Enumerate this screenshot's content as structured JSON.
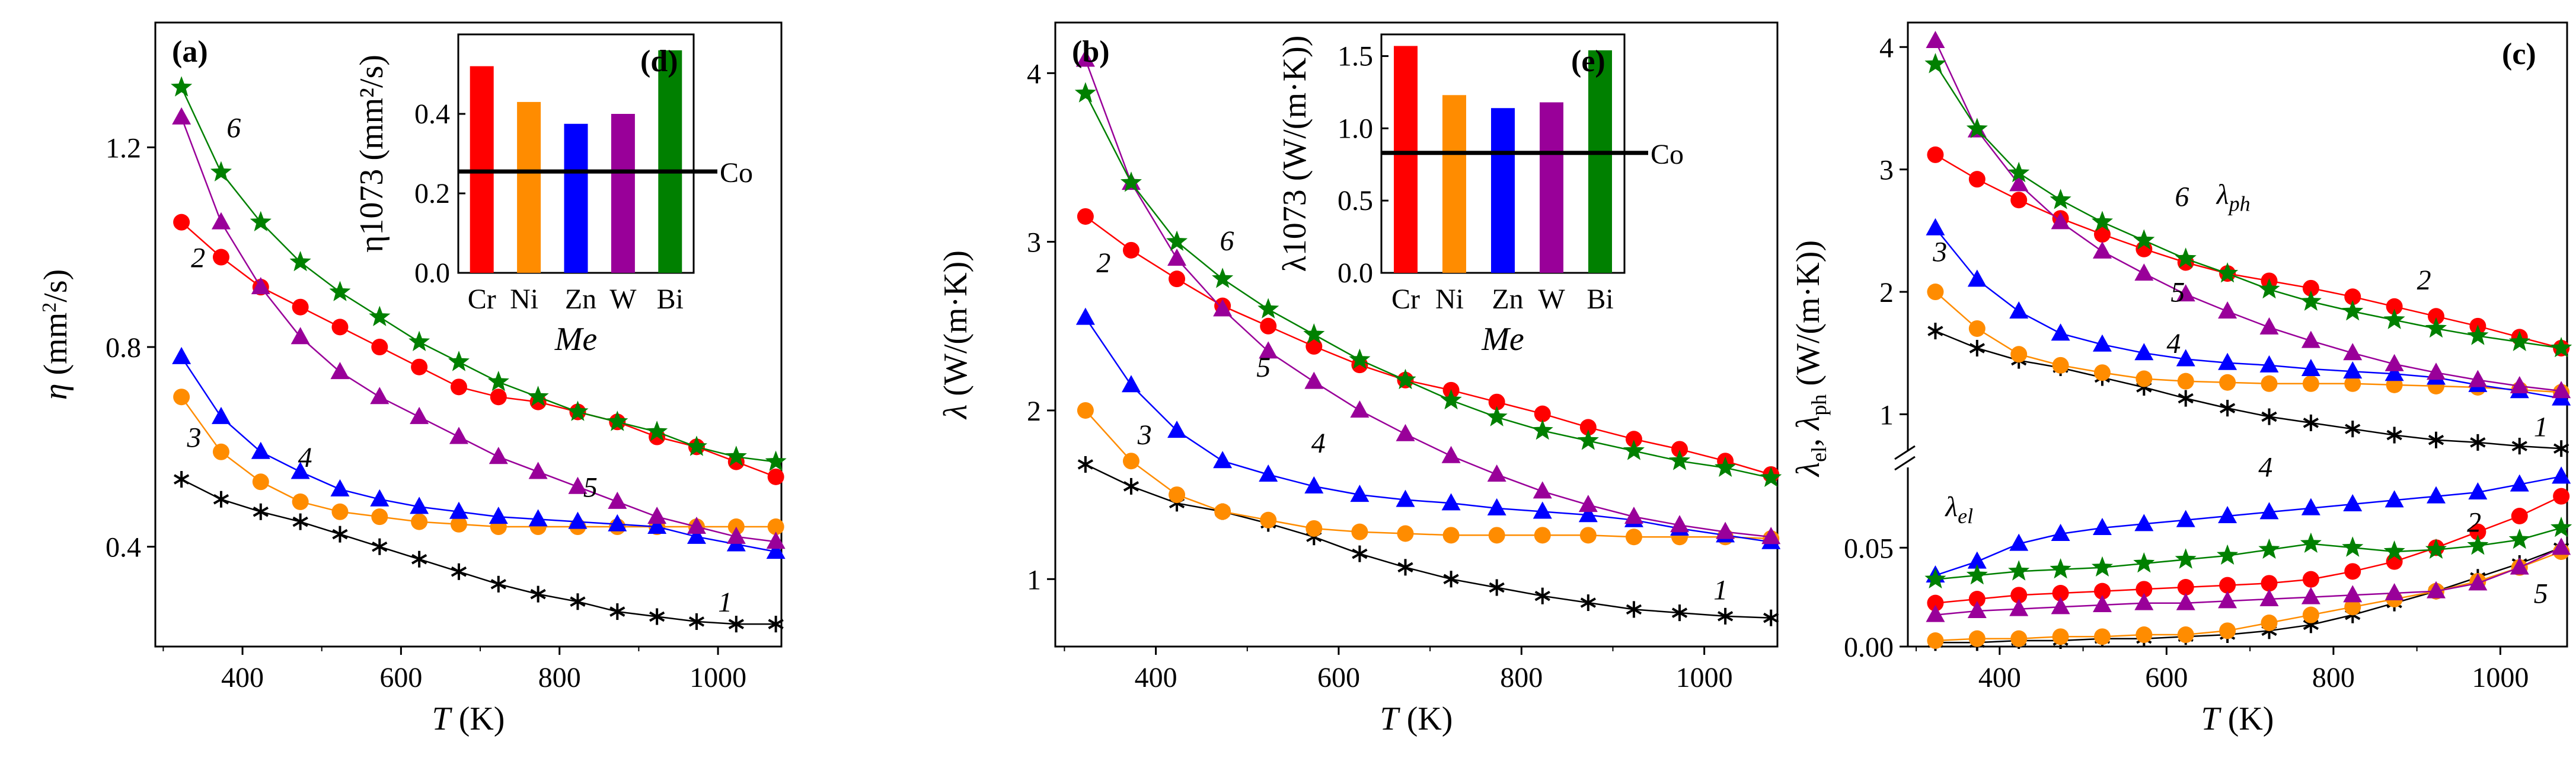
{
  "figure": {
    "panels": [
      {
        "id": "a",
        "tag": "(a)",
        "xlabel": "T (K)",
        "ylabel": "η (mm²/s)"
      },
      {
        "id": "b",
        "tag": "(b)",
        "xlabel": "T (K)",
        "ylabel": "λ (W/(m·K))"
      },
      {
        "id": "c",
        "tag": "(c)",
        "xlabel": "T (K)",
        "ylabel": "λel, λph (W/(m·K))"
      }
    ]
  },
  "colors": {
    "1": "#000000",
    "2": "#ff0000",
    "3": "#ff8c00",
    "4": "#0000ff",
    "5": "#990099",
    "6": "#008000"
  },
  "chart_data": [
    {
      "id": "a",
      "type": "line",
      "tag": "(a)",
      "xlabel": "T (K)",
      "ylabel": "η (mm²/s)",
      "xlim": [
        290,
        1080
      ],
      "ylim": [
        0.2,
        1.45
      ],
      "xticks": [
        400,
        600,
        800,
        1000
      ],
      "yticks": [
        0.4,
        0.8,
        1.2
      ],
      "x": [
        323,
        373,
        423,
        473,
        523,
        573,
        623,
        673,
        723,
        773,
        823,
        873,
        923,
        973,
        1023,
        1073
      ],
      "series": [
        {
          "name": "1",
          "label": "1",
          "marker": "star6",
          "values": [
            0.535,
            0.495,
            0.47,
            0.45,
            0.425,
            0.4,
            0.375,
            0.35,
            0.325,
            0.305,
            0.29,
            0.27,
            0.26,
            0.25,
            0.245,
            0.245
          ]
        },
        {
          "name": "2",
          "label": "2",
          "marker": "circle",
          "values": [
            1.05,
            0.98,
            0.92,
            0.88,
            0.84,
            0.8,
            0.76,
            0.72,
            0.7,
            0.69,
            0.67,
            0.65,
            0.62,
            0.6,
            0.57,
            0.54
          ]
        },
        {
          "name": "3",
          "label": "3",
          "marker": "circle",
          "values": [
            0.7,
            0.59,
            0.53,
            0.49,
            0.47,
            0.46,
            0.45,
            0.445,
            0.44,
            0.44,
            0.44,
            0.44,
            0.44,
            0.44,
            0.44,
            0.44
          ]
        },
        {
          "name": "4",
          "label": "4",
          "marker": "triangle",
          "values": [
            0.78,
            0.66,
            0.59,
            0.55,
            0.515,
            0.495,
            0.48,
            0.47,
            0.46,
            0.455,
            0.45,
            0.445,
            0.44,
            0.42,
            0.405,
            0.39
          ]
        },
        {
          "name": "5",
          "label": "5",
          "marker": "triangle",
          "values": [
            1.26,
            1.05,
            0.92,
            0.82,
            0.75,
            0.7,
            0.66,
            0.62,
            0.58,
            0.55,
            0.52,
            0.49,
            0.46,
            0.44,
            0.42,
            0.41
          ]
        },
        {
          "name": "6",
          "label": "6",
          "marker": "star5",
          "values": [
            1.32,
            1.15,
            1.05,
            0.97,
            0.91,
            0.86,
            0.81,
            0.77,
            0.73,
            0.7,
            0.67,
            0.65,
            0.63,
            0.6,
            0.58,
            0.57
          ]
        }
      ],
      "inset": {
        "tag": "(d)",
        "ylabel": "η1073 (mm²/s)",
        "xlabel": "Me",
        "categories": [
          "Cr",
          "Ni",
          "Zn",
          "W",
          "Bi"
        ],
        "values": [
          0.52,
          0.43,
          0.375,
          0.4,
          0.56
        ],
        "colors": [
          "#ff0000",
          "#ff8c00",
          "#0000ff",
          "#990099",
          "#008000"
        ],
        "ylim": [
          0,
          0.6
        ],
        "yticks": [
          0.0,
          0.2,
          0.4
        ],
        "refline": {
          "value": 0.255,
          "label": "Co"
        }
      }
    },
    {
      "id": "b",
      "type": "line",
      "tag": "(b)",
      "xlabel": "T (K)",
      "ylabel": "λ (W/(m·K))",
      "xlim": [
        290,
        1080
      ],
      "ylim": [
        0.6,
        4.3
      ],
      "xticks": [
        400,
        600,
        800,
        1000
      ],
      "yticks": [
        1,
        2,
        3,
        4
      ],
      "x": [
        323,
        373,
        423,
        473,
        523,
        573,
        623,
        673,
        723,
        773,
        823,
        873,
        923,
        973,
        1023,
        1073
      ],
      "series": [
        {
          "name": "1",
          "label": "1",
          "marker": "star6",
          "values": [
            1.68,
            1.55,
            1.45,
            1.4,
            1.33,
            1.25,
            1.15,
            1.07,
            1.0,
            0.95,
            0.9,
            0.86,
            0.82,
            0.8,
            0.78,
            0.77
          ]
        },
        {
          "name": "2",
          "label": "2",
          "marker": "circle",
          "values": [
            3.15,
            2.95,
            2.78,
            2.62,
            2.5,
            2.38,
            2.27,
            2.18,
            2.12,
            2.05,
            1.98,
            1.9,
            1.83,
            1.77,
            1.7,
            1.62
          ]
        },
        {
          "name": "3",
          "label": "3",
          "marker": "circle",
          "values": [
            2.0,
            1.7,
            1.5,
            1.4,
            1.35,
            1.3,
            1.28,
            1.27,
            1.26,
            1.26,
            1.26,
            1.26,
            1.25,
            1.25,
            1.25,
            1.24
          ]
        },
        {
          "name": "4",
          "label": "4",
          "marker": "triangle",
          "values": [
            2.55,
            2.15,
            1.88,
            1.7,
            1.62,
            1.55,
            1.5,
            1.47,
            1.45,
            1.42,
            1.4,
            1.38,
            1.35,
            1.3,
            1.26,
            1.22
          ]
        },
        {
          "name": "5",
          "label": "5",
          "marker": "triangle",
          "values": [
            4.08,
            3.35,
            2.9,
            2.6,
            2.35,
            2.17,
            2.0,
            1.86,
            1.73,
            1.62,
            1.52,
            1.44,
            1.37,
            1.32,
            1.28,
            1.25
          ]
        },
        {
          "name": "6",
          "label": "6",
          "marker": "star5",
          "values": [
            3.88,
            3.35,
            3.0,
            2.78,
            2.6,
            2.45,
            2.3,
            2.18,
            2.06,
            1.96,
            1.88,
            1.82,
            1.76,
            1.7,
            1.66,
            1.6
          ]
        }
      ],
      "inset": {
        "tag": "(e)",
        "ylabel": "λ1073 (W/(m·K))",
        "xlabel": "Me",
        "categories": [
          "Cr",
          "Ni",
          "Zn",
          "W",
          "Bi"
        ],
        "values": [
          1.57,
          1.23,
          1.14,
          1.18,
          1.54
        ],
        "colors": [
          "#ff0000",
          "#ff8c00",
          "#0000ff",
          "#990099",
          "#008000"
        ],
        "ylim": [
          0,
          1.65
        ],
        "yticks": [
          0.0,
          0.5,
          1.0,
          1.5
        ],
        "refline": {
          "value": 0.83,
          "label": "Co"
        }
      }
    },
    {
      "id": "c",
      "type": "line",
      "tag": "(c)",
      "xlabel": "T (K)",
      "ylabel": "λel, λph (W/(m·K))",
      "xlim": [
        290,
        1080
      ],
      "x": [
        323,
        373,
        423,
        473,
        523,
        573,
        623,
        673,
        723,
        773,
        823,
        873,
        923,
        973,
        1023,
        1073
      ],
      "broken_axis": {
        "upper": {
          "ylim": [
            0.75,
            4.2
          ],
          "yticks": [
            1,
            2,
            3,
            4
          ]
        },
        "lower": {
          "ylim": [
            0.0,
            0.09
          ],
          "yticks": [
            0.0,
            0.05
          ]
        }
      },
      "xticks": [
        400,
        600,
        800,
        1000
      ],
      "annotations": [
        {
          "text": "λph",
          "color": "#ff0000"
        },
        {
          "text": "λel",
          "color": "#ff0000"
        }
      ],
      "series_ph": [
        {
          "name": "1",
          "label": "1",
          "marker": "star6",
          "values": [
            1.68,
            1.54,
            1.44,
            1.38,
            1.3,
            1.22,
            1.13,
            1.05,
            0.98,
            0.93,
            0.88,
            0.83,
            0.79,
            0.77,
            0.74,
            0.72
          ]
        },
        {
          "name": "2",
          "label": "2",
          "marker": "circle",
          "values": [
            3.12,
            2.92,
            2.75,
            2.6,
            2.47,
            2.35,
            2.24,
            2.15,
            2.09,
            2.03,
            1.96,
            1.88,
            1.8,
            1.72,
            1.63,
            1.54
          ]
        },
        {
          "name": "3",
          "label": "3",
          "marker": "circle",
          "values": [
            2.0,
            1.7,
            1.49,
            1.4,
            1.34,
            1.29,
            1.27,
            1.26,
            1.25,
            1.25,
            1.25,
            1.24,
            1.23,
            1.22,
            1.2,
            1.18
          ]
        },
        {
          "name": "4",
          "label": "4",
          "marker": "triangle",
          "values": [
            2.52,
            2.1,
            1.84,
            1.66,
            1.57,
            1.5,
            1.45,
            1.42,
            1.4,
            1.37,
            1.35,
            1.33,
            1.3,
            1.24,
            1.19,
            1.13
          ]
        },
        {
          "name": "5",
          "label": "5",
          "marker": "triangle",
          "values": [
            4.05,
            3.32,
            2.88,
            2.57,
            2.33,
            2.15,
            1.98,
            1.84,
            1.71,
            1.6,
            1.5,
            1.41,
            1.34,
            1.28,
            1.23,
            1.19
          ]
        },
        {
          "name": "6",
          "label": "6",
          "marker": "star5",
          "values": [
            3.86,
            3.33,
            2.97,
            2.75,
            2.57,
            2.42,
            2.27,
            2.15,
            2.02,
            1.92,
            1.84,
            1.77,
            1.7,
            1.64,
            1.59,
            1.54
          ]
        }
      ],
      "series_el": [
        {
          "name": "1",
          "label": "1",
          "marker": "star6",
          "values": [
            0.002,
            0.002,
            0.003,
            0.003,
            0.004,
            0.004,
            0.005,
            0.006,
            0.008,
            0.011,
            0.016,
            0.022,
            0.028,
            0.035,
            0.042,
            0.05
          ]
        },
        {
          "name": "2",
          "label": "2",
          "marker": "circle",
          "values": [
            0.022,
            0.024,
            0.026,
            0.027,
            0.028,
            0.029,
            0.03,
            0.031,
            0.032,
            0.034,
            0.038,
            0.043,
            0.05,
            0.058,
            0.066,
            0.076
          ]
        },
        {
          "name": "3",
          "label": "3",
          "marker": "circle",
          "values": [
            0.003,
            0.004,
            0.004,
            0.005,
            0.005,
            0.006,
            0.006,
            0.008,
            0.012,
            0.016,
            0.02,
            0.024,
            0.028,
            0.033,
            0.04,
            0.048
          ]
        },
        {
          "name": "4",
          "label": "4",
          "marker": "triangle",
          "values": [
            0.036,
            0.043,
            0.052,
            0.057,
            0.06,
            0.062,
            0.064,
            0.066,
            0.068,
            0.07,
            0.072,
            0.074,
            0.076,
            0.078,
            0.082,
            0.086
          ]
        },
        {
          "name": "5",
          "label": "5",
          "marker": "triangle",
          "values": [
            0.016,
            0.018,
            0.019,
            0.02,
            0.021,
            0.022,
            0.022,
            0.023,
            0.024,
            0.025,
            0.026,
            0.027,
            0.028,
            0.032,
            0.04,
            0.05
          ]
        },
        {
          "name": "6",
          "label": "6",
          "marker": "star5",
          "values": [
            0.034,
            0.036,
            0.038,
            0.039,
            0.04,
            0.042,
            0.044,
            0.046,
            0.049,
            0.052,
            0.05,
            0.048,
            0.049,
            0.051,
            0.054,
            0.06
          ]
        }
      ]
    }
  ]
}
